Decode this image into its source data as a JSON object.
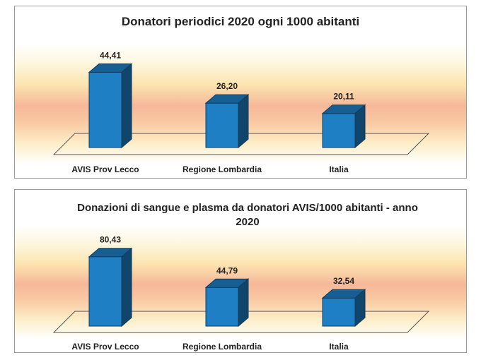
{
  "chart_data": [
    {
      "type": "bar",
      "title": "Donatori periodici 2020 ogni 1000 abitanti",
      "categories": [
        "AVIS Prov Lecco",
        "Regione Lombardia",
        "Italia"
      ],
      "values": [
        44.41,
        26.2,
        20.11
      ],
      "value_labels": [
        "44,41",
        "26,20",
        "20,11"
      ],
      "xlabel": "",
      "ylabel": "",
      "ylim": [
        0,
        50
      ],
      "grid": false,
      "legend": "none",
      "bar_color": "#1f7fc4"
    },
    {
      "type": "bar",
      "title": "Donazioni di sangue e plasma da donatori AVIS/1000 abitanti - anno 2020",
      "categories": [
        "AVIS Prov Lecco",
        "Regione Lombardia",
        "Italia"
      ],
      "values": [
        80.43,
        44.79,
        32.54
      ],
      "value_labels": [
        "80,43",
        "44,79",
        "32,54"
      ],
      "xlabel": "",
      "ylabel": "",
      "ylim": [
        0,
        90
      ],
      "grid": false,
      "legend": "none",
      "bar_color": "#1f7fc4"
    }
  ]
}
